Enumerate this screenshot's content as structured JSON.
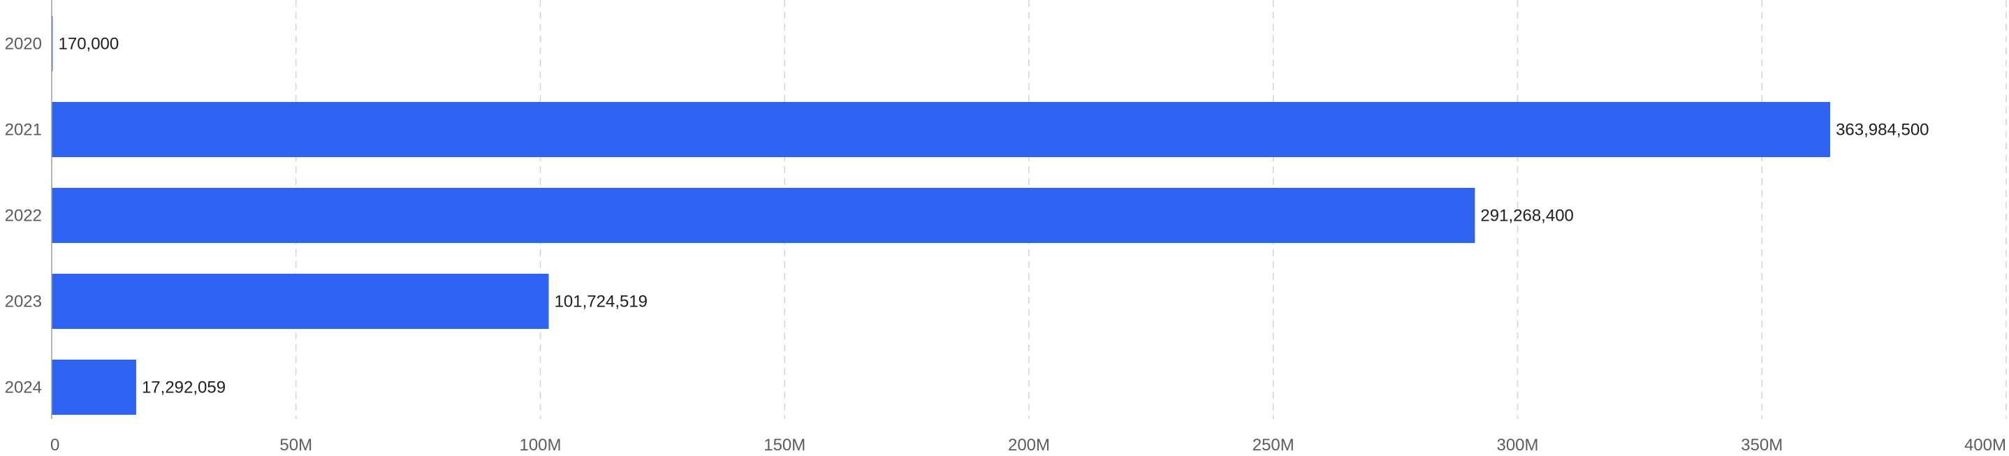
{
  "chart_data": {
    "type": "bar",
    "orientation": "horizontal",
    "categories": [
      "2020",
      "2021",
      "2022",
      "2023",
      "2024"
    ],
    "values": [
      170000,
      363984500,
      291268400,
      101724519,
      17292059
    ],
    "value_labels": [
      "170,000",
      "363,984,500",
      "291,268,400",
      "101,724,519",
      "17,292,059"
    ],
    "xlim": [
      0,
      400000000
    ],
    "x_ticks": [
      0,
      50000000,
      100000000,
      150000000,
      200000000,
      250000000,
      300000000,
      350000000,
      400000000
    ],
    "x_tick_labels": [
      "0",
      "50M",
      "100M",
      "150M",
      "200M",
      "250M",
      "300M",
      "350M",
      "400M"
    ],
    "grid": "vertical dashed",
    "legend": "none",
    "title": "",
    "xlabel": "",
    "ylabel": ""
  },
  "colors": {
    "bar": "#2f64f2",
    "grid": "#d4d4d4",
    "axis": "#9e9e9e",
    "tick_text": "#5c5c5c",
    "label_text": "#1e1e1e"
  }
}
